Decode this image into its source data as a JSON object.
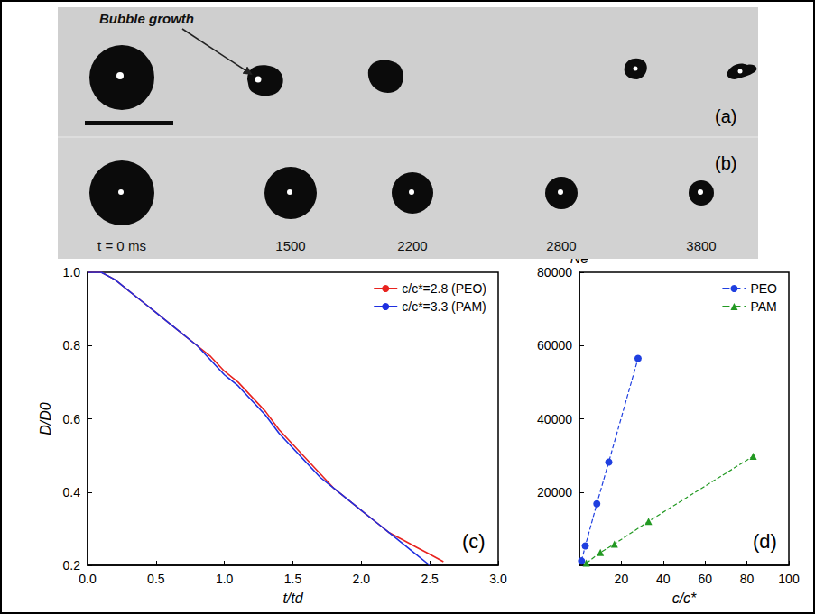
{
  "images": {
    "a": {
      "label": "(a)",
      "annotation": "Bubble growth"
    },
    "b": {
      "label": "(b)",
      "time_labels": [
        "t = 0 ms",
        "1500",
        "2200",
        "2800",
        "3800"
      ]
    }
  },
  "chart_data": [
    {
      "type": "line",
      "annotations": [
        "(c)"
      ],
      "xlabel": "t/td",
      "ylabel": "D/D0",
      "xlim": [
        0,
        3
      ],
      "xticks": [
        {
          "value": 0,
          "label": "0.0"
        },
        0.5,
        {
          "value": 1,
          "label": "1.0"
        },
        1.5,
        {
          "value": 2,
          "label": "2.0"
        },
        2.5,
        {
          "value": 3,
          "label": "3.0"
        }
      ],
      "ylim": [
        0.2,
        1
      ],
      "yticks": [
        0.2,
        0.4,
        0.6,
        0.8,
        {
          "value": 1,
          "label": "1.0"
        }
      ],
      "grid": false,
      "legend": "upper right",
      "marker": "none",
      "line_style": "solid",
      "series": [
        {
          "name": "c/c*=2.8 (PEO)",
          "color": "#e8231f",
          "x": [
            0,
            0.1,
            0.2,
            0.3,
            0.4,
            0.5,
            0.6,
            0.7,
            0.8,
            0.9,
            1.0,
            1.1,
            1.2,
            1.3,
            1.4,
            1.5,
            1.6,
            1.7,
            1.8,
            1.9,
            2.0,
            2.1,
            2.2,
            2.3,
            2.4,
            2.5,
            2.6
          ],
          "values": [
            1.0,
            1.0,
            0.98,
            0.95,
            0.92,
            0.89,
            0.86,
            0.83,
            0.8,
            0.77,
            0.73,
            0.7,
            0.66,
            0.62,
            0.57,
            0.53,
            0.49,
            0.45,
            0.41,
            0.38,
            0.35,
            0.32,
            0.29,
            0.27,
            0.25,
            0.23,
            0.21
          ]
        },
        {
          "name": "c/c*=3.3 (PAM)",
          "color": "#1f2fe0",
          "x": [
            0,
            0.1,
            0.2,
            0.3,
            0.4,
            0.5,
            0.6,
            0.7,
            0.8,
            0.9,
            1.0,
            1.1,
            1.2,
            1.3,
            1.4,
            1.5,
            1.6,
            1.7,
            1.8,
            1.9,
            2.0,
            2.1,
            2.2,
            2.3,
            2.4,
            2.5
          ],
          "values": [
            1.0,
            1.0,
            0.98,
            0.95,
            0.92,
            0.89,
            0.86,
            0.83,
            0.8,
            0.76,
            0.72,
            0.69,
            0.65,
            0.61,
            0.56,
            0.52,
            0.48,
            0.44,
            0.41,
            0.38,
            0.35,
            0.32,
            0.29,
            0.26,
            0.23,
            0.2
          ]
        }
      ]
    },
    {
      "type": "line",
      "annotations": [
        "(d)"
      ],
      "xlabel": "c/c*",
      "ylabel": "Ne",
      "xlim": [
        0,
        100
      ],
      "xticks": [
        20,
        40,
        60,
        80,
        100
      ],
      "ylim": [
        0,
        80000
      ],
      "yticks": [
        20000,
        40000,
        60000,
        80000
      ],
      "grid": false,
      "legend": "upper right",
      "line_style": "dashed",
      "series": [
        {
          "name": "PEO",
          "color": "#1f3fe0",
          "marker": "circle",
          "x": [
            1,
            2.8,
            8.3,
            14,
            28
          ],
          "values": [
            1200,
            5300,
            16800,
            28200,
            56500
          ]
        },
        {
          "name": "PAM",
          "color": "#229922",
          "marker": "triangle",
          "x": [
            3.3,
            10,
            16.7,
            33,
            83
          ],
          "values": [
            600,
            3500,
            5800,
            12000,
            29800
          ]
        }
      ]
    }
  ]
}
